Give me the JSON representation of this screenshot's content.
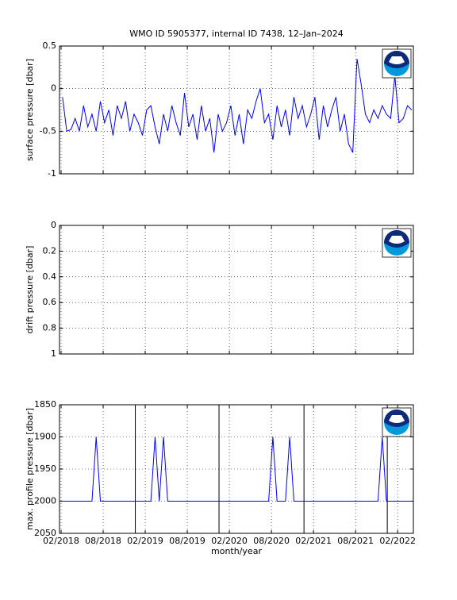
{
  "chart_data": [
    {
      "type": "line",
      "title": "WMO ID 5905377, internal ID 7438, 12–Jan–2024",
      "ylabel": "surface pressure [dbar]",
      "xlim": [
        2018.064,
        2022.27
      ],
      "ylim": [
        -1,
        0.5
      ],
      "yticks": [
        -1,
        -0.5,
        0,
        0.5
      ],
      "xticks": [
        2018.083,
        2018.583,
        2019.083,
        2019.583,
        2020.083,
        2020.583,
        2021.083,
        2021.583,
        2022.083
      ],
      "show_xticklabels": false,
      "grid": true,
      "x": [
        2018.1,
        2018.15,
        2018.2,
        2018.25,
        2018.3,
        2018.35,
        2018.4,
        2018.45,
        2018.5,
        2018.55,
        2018.6,
        2018.65,
        2018.7,
        2018.75,
        2018.8,
        2018.85,
        2018.9,
        2018.95,
        2019,
        2019.05,
        2019.1,
        2019.15,
        2019.2,
        2019.25,
        2019.3,
        2019.35,
        2019.4,
        2019.45,
        2019.5,
        2019.55,
        2019.6,
        2019.65,
        2019.7,
        2019.75,
        2019.8,
        2019.85,
        2019.9,
        2019.95,
        2020,
        2020.05,
        2020.1,
        2020.15,
        2020.2,
        2020.25,
        2020.3,
        2020.35,
        2020.4,
        2020.45,
        2020.5,
        2020.55,
        2020.6,
        2020.65,
        2020.7,
        2020.75,
        2020.8,
        2020.85,
        2020.9,
        2020.95,
        2021,
        2021.05,
        2021.1,
        2021.15,
        2021.2,
        2021.25,
        2021.3,
        2021.35,
        2021.4,
        2021.45,
        2021.5,
        2021.55,
        2021.6,
        2021.65,
        2021.7,
        2021.75,
        2021.8,
        2021.85,
        2021.9,
        2021.95,
        2022,
        2022.05,
        2022.1,
        2022.15,
        2022.2,
        2022.25
      ],
      "series": [
        {
          "color": "#0000ff",
          "values": [
            -0.1,
            -0.5,
            -0.48,
            -0.35,
            -0.5,
            -0.2,
            -0.45,
            -0.3,
            -0.5,
            -0.15,
            -0.4,
            -0.25,
            -0.55,
            -0.2,
            -0.35,
            -0.15,
            -0.5,
            -0.3,
            -0.4,
            -0.55,
            -0.25,
            -0.2,
            -0.45,
            -0.65,
            -0.3,
            -0.5,
            -0.2,
            -0.4,
            -0.55,
            -0.05,
            -0.45,
            -0.3,
            -0.6,
            -0.2,
            -0.5,
            -0.35,
            -0.75,
            -0.3,
            -0.5,
            -0.4,
            -0.2,
            -0.55,
            -0.3,
            -0.65,
            -0.25,
            -0.35,
            -0.15,
            0,
            -0.4,
            -0.3,
            -0.6,
            -0.2,
            -0.45,
            -0.25,
            -0.55,
            -0.1,
            -0.35,
            -0.2,
            -0.45,
            -0.3,
            -0.1,
            -0.6,
            -0.2,
            -0.45,
            -0.25,
            -0.1,
            -0.5,
            -0.3,
            -0.65,
            -0.75,
            0.35,
            0.05,
            -0.3,
            -0.4,
            -0.25,
            -0.35,
            -0.2,
            -0.3,
            -0.35,
            0.15,
            -0.4,
            -0.35,
            -0.2,
            -0.25
          ]
        }
      ]
    },
    {
      "type": "line",
      "ylabel": "drift pressure [dbar]",
      "xlim": [
        2018.064,
        2022.27
      ],
      "ylim": [
        0,
        1
      ],
      "y_reversed": true,
      "yticks": [
        0,
        0.2,
        0.4,
        0.6,
        0.8,
        1
      ],
      "xticks": [
        2018.083,
        2018.583,
        2019.083,
        2019.583,
        2020.083,
        2020.583,
        2021.083,
        2021.583,
        2022.083
      ],
      "show_xticklabels": false,
      "grid": true,
      "series": []
    },
    {
      "type": "line",
      "ylabel": "max. profile pressure [dbar]",
      "xlabel": "month/year",
      "xlim": [
        2018.064,
        2022.27
      ],
      "ylim": [
        1850,
        2050
      ],
      "y_reversed": true,
      "yticks": [
        1850,
        1900,
        1950,
        2000,
        2050
      ],
      "xticks": [
        {
          "value": 2018.083,
          "label": "02/2018"
        },
        {
          "value": 2018.583,
          "label": "08/2018"
        },
        {
          "value": 2019.083,
          "label": "02/2019"
        },
        {
          "value": 2019.583,
          "label": "08/2019"
        },
        {
          "value": 2020.083,
          "label": "02/2020"
        },
        {
          "value": 2020.583,
          "label": "08/2020"
        },
        {
          "value": 2021.083,
          "label": "02/2021"
        },
        {
          "value": 2021.583,
          "label": "08/2021"
        },
        {
          "value": 2022.083,
          "label": "02/2022"
        }
      ],
      "show_xticklabels": true,
      "grid": true,
      "vlines": [
        2018.965,
        2019.96,
        2020.97,
        2021.96
      ],
      "vline_color": "#000000",
      "x": [
        2018.1,
        2018.15,
        2018.2,
        2018.25,
        2018.3,
        2018.35,
        2018.4,
        2018.45,
        2018.5,
        2018.55,
        2018.6,
        2018.65,
        2018.7,
        2018.75,
        2018.8,
        2018.85,
        2018.9,
        2018.95,
        2019,
        2019.05,
        2019.1,
        2019.15,
        2019.2,
        2019.25,
        2019.3,
        2019.35,
        2019.4,
        2019.45,
        2019.5,
        2019.55,
        2019.6,
        2019.65,
        2019.7,
        2019.75,
        2019.8,
        2019.85,
        2019.9,
        2019.95,
        2020,
        2020.05,
        2020.1,
        2020.15,
        2020.2,
        2020.25,
        2020.3,
        2020.35,
        2020.4,
        2020.45,
        2020.5,
        2020.55,
        2020.6,
        2020.65,
        2020.7,
        2020.75,
        2020.8,
        2020.85,
        2020.9,
        2020.95,
        2021,
        2021.05,
        2021.1,
        2021.15,
        2021.2,
        2021.25,
        2021.3,
        2021.35,
        2021.4,
        2021.45,
        2021.5,
        2021.55,
        2021.6,
        2021.65,
        2021.7,
        2021.75,
        2021.8,
        2021.85,
        2021.9,
        2021.95,
        2022,
        2022.05,
        2022.1,
        2022.15,
        2022.2,
        2022.25
      ],
      "series": [
        {
          "color": "#0000ff",
          "values": [
            2000,
            2000,
            2000,
            2000,
            2000,
            2000,
            2000,
            2000,
            1900,
            2000,
            2000,
            2000,
            2000,
            2000,
            2000,
            2000,
            2000,
            2000,
            2000,
            2000,
            2000,
            2000,
            1900,
            2000,
            1900,
            2000,
            2000,
            2000,
            2000,
            2000,
            2000,
            2000,
            2000,
            2000,
            2000,
            2000,
            2000,
            2000,
            2000,
            2000,
            2000,
            2000,
            2000,
            2000,
            2000,
            2000,
            2000,
            2000,
            2000,
            2000,
            1900,
            2000,
            2000,
            2000,
            1900,
            2000,
            2000,
            2000,
            2000,
            2000,
            2000,
            2000,
            2000,
            2000,
            2000,
            2000,
            2000,
            2000,
            2000,
            2000,
            2000,
            2000,
            2000,
            2000,
            2000,
            2000,
            1900,
            2000,
            2000,
            2000,
            2000,
            2000,
            2000,
            2000
          ]
        }
      ]
    }
  ]
}
